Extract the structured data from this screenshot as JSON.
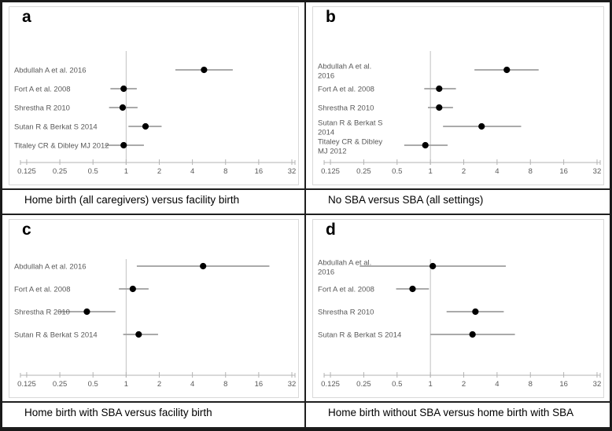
{
  "colors": {
    "point": "#000000",
    "ci_line": "#9e9e9e",
    "axis_line": "#b3b3b3",
    "reference_line": "#c0c0c0",
    "tick_label_text": "#595959",
    "study_label_text": "#595959",
    "caption_text": "#000000",
    "chart_frame_border": "#d9d9d9",
    "figure_border": "#1a1a1a"
  },
  "chart_data": [
    {
      "type": "scatter",
      "variant": "forest_plot",
      "panel_label": "a",
      "title": "Home birth (all caregivers) versus facility birth",
      "x_scale": "log2",
      "xlim": [
        0.125,
        32
      ],
      "x_ticks": [
        0.125,
        0.25,
        0.5,
        1,
        2,
        4,
        8,
        16,
        32
      ],
      "x_tick_labels": [
        "0.125",
        "0.25",
        "0.5",
        "1",
        "2",
        "4",
        "8",
        "16",
        "32"
      ],
      "reference_line_x": 1,
      "grid": false,
      "studies": [
        {
          "label_lines": [
            "Abdullah A et al. 2016"
          ],
          "estimate": 5.1,
          "ci_lower": 2.8,
          "ci_upper": 9.3
        },
        {
          "label_lines": [
            "Fort A et al. 2008"
          ],
          "estimate": 0.95,
          "ci_lower": 0.72,
          "ci_upper": 1.25
        },
        {
          "label_lines": [
            "Shrestha R 2010"
          ],
          "estimate": 0.93,
          "ci_lower": 0.7,
          "ci_upper": 1.27
        },
        {
          "label_lines": [
            "Sutan R & Berkat S 2014"
          ],
          "estimate": 1.5,
          "ci_lower": 1.05,
          "ci_upper": 2.1
        },
        {
          "label_lines": [
            "Titaley CR & Dibley MJ 2012"
          ],
          "estimate": 0.95,
          "ci_lower": 0.64,
          "ci_upper": 1.45
        }
      ]
    },
    {
      "type": "scatter",
      "variant": "forest_plot",
      "panel_label": "b",
      "title": "No SBA versus SBA (all settings)",
      "x_scale": "log2",
      "xlim": [
        0.125,
        32
      ],
      "x_ticks": [
        0.125,
        0.25,
        0.5,
        1,
        2,
        4,
        8,
        16,
        32
      ],
      "x_tick_labels": [
        "0.125",
        "0.25",
        "0.5",
        "1",
        "2",
        "4",
        "8",
        "16",
        "32"
      ],
      "reference_line_x": 1,
      "grid": false,
      "studies": [
        {
          "label_lines": [
            "Abdullah A et al.",
            "2016"
          ],
          "estimate": 4.9,
          "ci_lower": 2.5,
          "ci_upper": 9.5
        },
        {
          "label_lines": [
            "Fort A et al. 2008"
          ],
          "estimate": 1.2,
          "ci_lower": 0.88,
          "ci_upper": 1.7
        },
        {
          "label_lines": [
            "Shrestha R 2010"
          ],
          "estimate": 1.2,
          "ci_lower": 0.95,
          "ci_upper": 1.6
        },
        {
          "label_lines": [
            "Sutan R & Berkat S",
            "2014"
          ],
          "estimate": 2.9,
          "ci_lower": 1.3,
          "ci_upper": 6.6
        },
        {
          "label_lines": [
            "Titaley CR & Dibley",
            "MJ 2012"
          ],
          "estimate": 0.9,
          "ci_lower": 0.58,
          "ci_upper": 1.43
        }
      ]
    },
    {
      "type": "scatter",
      "variant": "forest_plot",
      "panel_label": "c",
      "title": "Home birth with SBA versus facility birth",
      "x_scale": "log2",
      "xlim": [
        0.125,
        32
      ],
      "x_ticks": [
        0.125,
        0.25,
        0.5,
        1,
        2,
        4,
        8,
        16,
        32
      ],
      "x_tick_labels": [
        "0.125",
        "0.25",
        "0.5",
        "1",
        "2",
        "4",
        "8",
        "16",
        "32"
      ],
      "reference_line_x": 1,
      "grid": false,
      "studies": [
        {
          "label_lines": [
            "Abdullah A et al. 2016"
          ],
          "estimate": 5.0,
          "ci_lower": 1.25,
          "ci_upper": 20.0
        },
        {
          "label_lines": [
            "Fort A et al. 2008"
          ],
          "estimate": 1.15,
          "ci_lower": 0.86,
          "ci_upper": 1.6
        },
        {
          "label_lines": [
            "Shrestha R 2010"
          ],
          "estimate": 0.44,
          "ci_lower": 0.24,
          "ci_upper": 0.8
        },
        {
          "label_lines": [
            "Sutan R & Berkat S 2014"
          ],
          "estimate": 1.3,
          "ci_lower": 0.94,
          "ci_upper": 1.95
        }
      ]
    },
    {
      "type": "scatter",
      "variant": "forest_plot",
      "panel_label": "d",
      "title": "Home birth without SBA versus home birth with SBA",
      "x_scale": "log2",
      "xlim": [
        0.125,
        32
      ],
      "x_ticks": [
        0.125,
        0.25,
        0.5,
        1,
        2,
        4,
        8,
        16,
        32
      ],
      "x_tick_labels": [
        "0.125",
        "0.25",
        "0.5",
        "1",
        "2",
        "4",
        "8",
        "16",
        "32"
      ],
      "reference_line_x": 1,
      "grid": false,
      "studies": [
        {
          "label_lines": [
            "Abdullah A et al.",
            "2016"
          ],
          "estimate": 1.05,
          "ci_lower": 0.23,
          "ci_upper": 4.8
        },
        {
          "label_lines": [
            "Fort A et al. 2008"
          ],
          "estimate": 0.69,
          "ci_lower": 0.49,
          "ci_upper": 0.97
        },
        {
          "label_lines": [
            "Shrestha R 2010"
          ],
          "estimate": 2.55,
          "ci_lower": 1.4,
          "ci_upper": 4.6
        },
        {
          "label_lines": [
            "Sutan R & Berkat S 2014"
          ],
          "estimate": 2.4,
          "ci_lower": 1.0,
          "ci_upper": 5.8
        }
      ]
    }
  ]
}
